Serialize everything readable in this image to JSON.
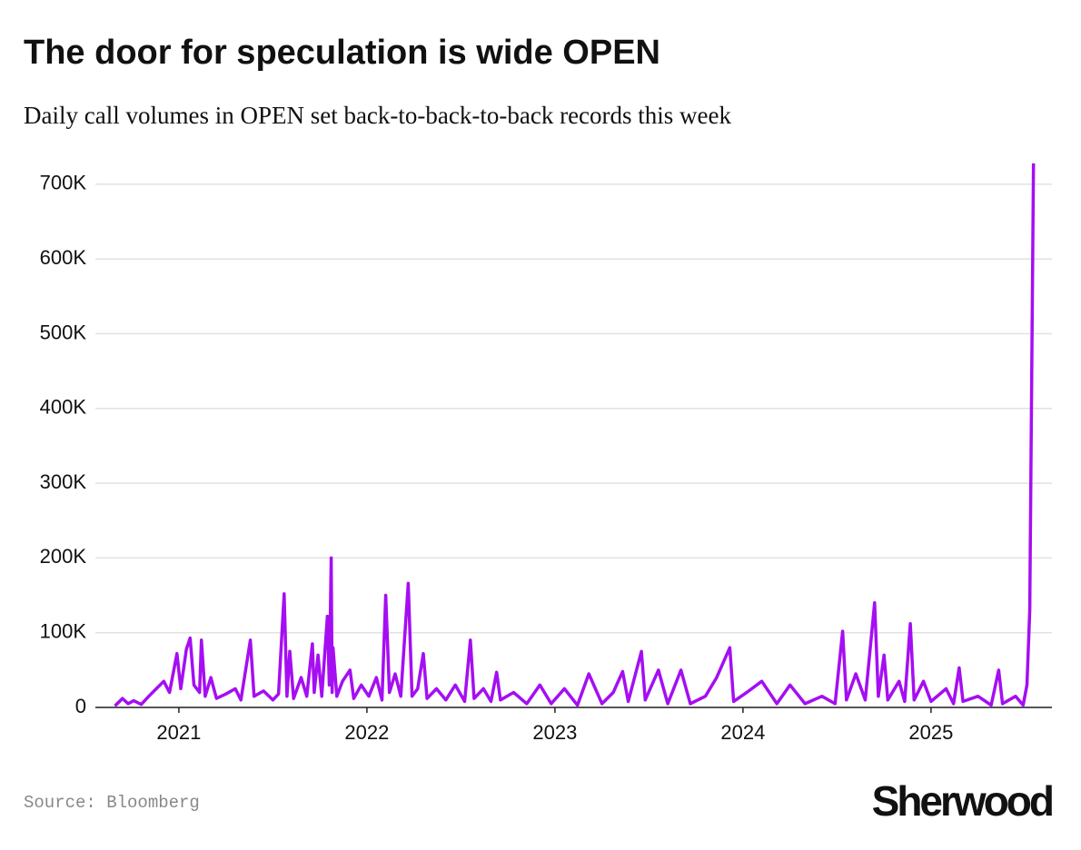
{
  "chart_data": {
    "type": "line",
    "title": "The door for speculation is wide OPEN",
    "subtitle": "Daily call volumes in OPEN set back-to-back-to-back records this week",
    "source": "Source: Bloomberg",
    "logo": "Sherwood",
    "x": [
      2020.66,
      2020.7,
      2020.73,
      2020.76,
      2020.8,
      2020.84,
      2020.88,
      2020.92,
      2020.95,
      2020.99,
      2021.01,
      2021.04,
      2021.06,
      2021.08,
      2021.11,
      2021.12,
      2021.14,
      2021.17,
      2021.2,
      2021.25,
      2021.3,
      2021.33,
      2021.38,
      2021.4,
      2021.45,
      2021.5,
      2021.53,
      2021.56,
      2021.575,
      2021.59,
      2021.61,
      2021.65,
      2021.68,
      2021.71,
      2021.72,
      2021.74,
      2021.76,
      2021.79,
      2021.8,
      2021.81,
      2021.815,
      2021.82,
      2021.84,
      2021.87,
      2021.91,
      2021.93,
      2021.97,
      2022.01,
      2022.05,
      2022.08,
      2022.1,
      2022.12,
      2022.15,
      2022.18,
      2022.22,
      2022.24,
      2022.27,
      2022.3,
      2022.32,
      2022.37,
      2022.42,
      2022.47,
      2022.52,
      2022.55,
      2022.57,
      2022.62,
      2022.66,
      2022.69,
      2022.71,
      2022.78,
      2022.85,
      2022.92,
      2022.98,
      2023.05,
      2023.12,
      2023.18,
      2023.25,
      2023.31,
      2023.36,
      2023.39,
      2023.46,
      2023.48,
      2023.55,
      2023.6,
      2023.67,
      2023.72,
      2023.8,
      2023.86,
      2023.93,
      2023.95,
      2024.02,
      2024.1,
      2024.18,
      2024.25,
      2024.33,
      2024.42,
      2024.49,
      2024.53,
      2024.55,
      2024.6,
      2024.65,
      2024.7,
      2024.72,
      2024.75,
      2024.77,
      2024.83,
      2024.86,
      2024.89,
      2024.91,
      2024.96,
      2025.0,
      2025.08,
      2025.12,
      2025.15,
      2025.17,
      2025.25,
      2025.32,
      2025.36,
      2025.38,
      2025.45,
      2025.49,
      2025.51,
      2025.525,
      2025.545
    ],
    "series": [
      {
        "color": "#a50ef2",
        "values": [
          2000,
          12000,
          5000,
          9000,
          4000,
          15000,
          25000,
          35000,
          20000,
          72000,
          25000,
          78000,
          93000,
          30000,
          20000,
          90000,
          15000,
          40000,
          12000,
          18000,
          25000,
          10000,
          90000,
          15000,
          22000,
          10000,
          18000,
          152000,
          15000,
          75000,
          12000,
          40000,
          15000,
          85000,
          20000,
          70000,
          15000,
          122000,
          30000,
          200000,
          20000,
          80000,
          15000,
          35000,
          50000,
          12000,
          30000,
          15000,
          40000,
          10000,
          150000,
          20000,
          45000,
          15000,
          166000,
          15000,
          25000,
          72000,
          12000,
          25000,
          10000,
          30000,
          8000,
          90000,
          12000,
          25000,
          8000,
          47000,
          10000,
          20000,
          5000,
          30000,
          5000,
          25000,
          3000,
          45000,
          5000,
          20000,
          48000,
          8000,
          75000,
          10000,
          50000,
          5000,
          50000,
          5000,
          15000,
          40000,
          80000,
          8000,
          20000,
          35000,
          5000,
          30000,
          5000,
          15000,
          5000,
          102000,
          10000,
          45000,
          10000,
          140000,
          15000,
          70000,
          10000,
          35000,
          8000,
          112000,
          10000,
          35000,
          8000,
          25000,
          5000,
          53000,
          8000,
          15000,
          3000,
          50000,
          5000,
          15000,
          3000,
          30000,
          130000,
          728000
        ]
      }
    ],
    "xlim": [
      2020.556,
      2025.643
    ],
    "xticks": [
      2021,
      2022,
      2023,
      2024,
      2025
    ],
    "ylim": [
      0,
      740000
    ],
    "yticks": [
      0,
      {
        "value": 100000,
        "label": "100K"
      },
      {
        "value": 200000,
        "label": "200K"
      },
      {
        "value": 300000,
        "label": "300K"
      },
      {
        "value": 400000,
        "label": "400K"
      },
      {
        "value": 500000,
        "label": "500K"
      },
      {
        "value": 600000,
        "label": "600K"
      },
      {
        "value": 700000,
        "label": "700K"
      }
    ],
    "grid": true
  }
}
